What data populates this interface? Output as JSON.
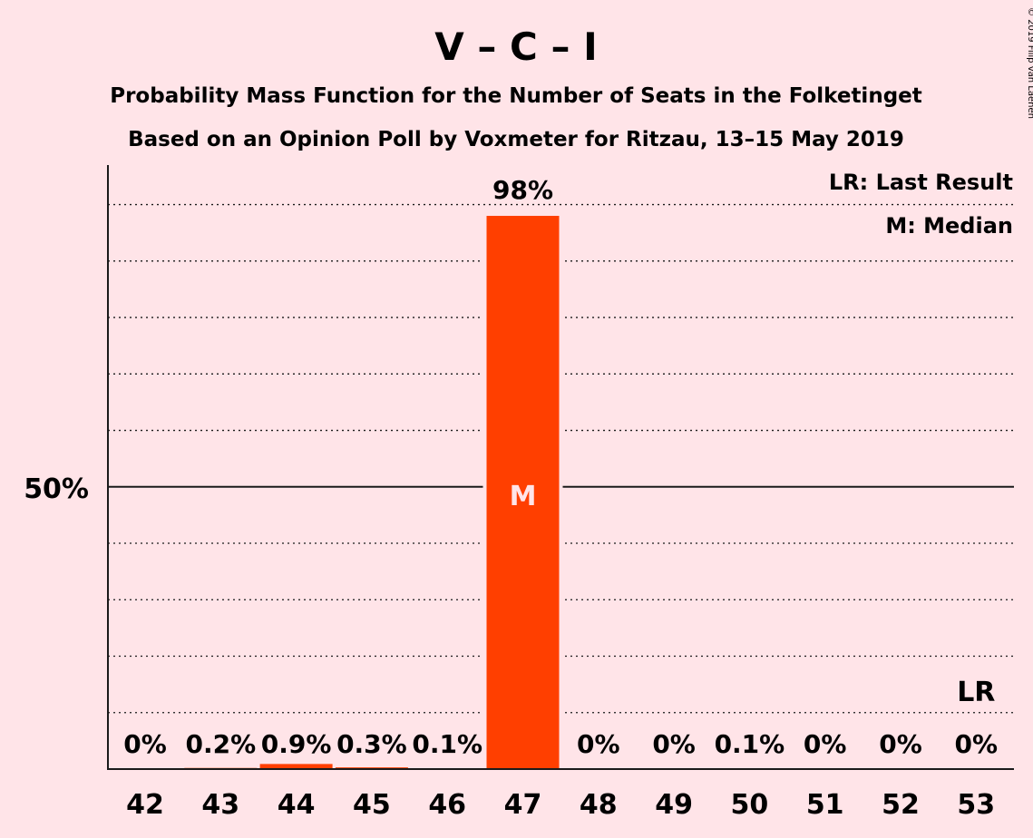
{
  "chart_data": {
    "type": "bar",
    "title": "V – C – I",
    "subtitle_lines": [
      "Probability Mass Function for the Number of Seats in the Folketinget",
      "Based on an Opinion Poll by Voxmeter for Ritzau, 13–15 May 2019"
    ],
    "categories": [
      "42",
      "43",
      "44",
      "45",
      "46",
      "47",
      "48",
      "49",
      "50",
      "51",
      "52",
      "53"
    ],
    "values": [
      0,
      0.2,
      0.9,
      0.3,
      0.1,
      98,
      0,
      0,
      0.1,
      0,
      0,
      0
    ],
    "value_labels": [
      "0%",
      "0.2%",
      "0.9%",
      "0.3%",
      "0.1%",
      "98%",
      "0%",
      "0%",
      "0.1%",
      "0%",
      "0%",
      "0%"
    ],
    "ylim": [
      0,
      107
    ],
    "y_tick_label": "50%",
    "y_tick_value": 50,
    "grid_step": 10,
    "grid": true,
    "median_category": "47",
    "median_marker": "M",
    "last_result_category": "53",
    "last_result_marker": "LR",
    "legend": [
      "LR: Last Result",
      "M: Median"
    ],
    "legend_position": "top-right",
    "bar_color": "#FF3F00",
    "copyright": "© 2019 Filip van Laenen"
  }
}
